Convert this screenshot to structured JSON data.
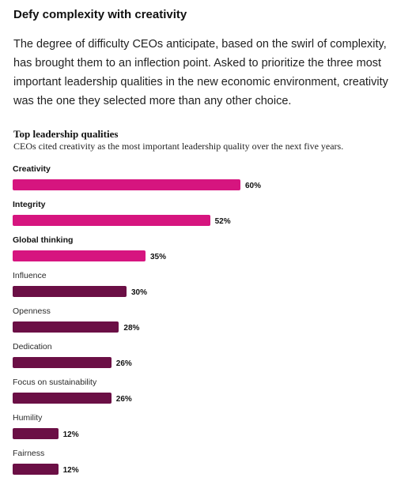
{
  "heading": "Defy complexity with creativity",
  "intro": "The degree of difficulty CEOs anticipate, based on the swirl of complexity, has brought them to an inflection point. Asked to prioritize the three most important leadership qualities in the new economic environment, creativity was the one they selected more than any other choice.",
  "colors": {
    "highlight": "#d6157f",
    "standard": "#6b0f45"
  },
  "chart_data": {
    "type": "bar",
    "orientation": "horizontal",
    "title": "Top leadership qualities",
    "subtitle": "CEOs cited creativity as the most important leadership quality over the next five years.",
    "xlim": [
      0,
      100
    ],
    "categories": [
      "Creativity",
      "Integrity",
      "Global thinking",
      "Influence",
      "Openness",
      "Dedication",
      "Focus on sustainability",
      "Humility",
      "Fairness"
    ],
    "values": [
      60,
      52,
      35,
      30,
      28,
      26,
      26,
      12,
      12
    ],
    "value_labels": [
      "60%",
      "52%",
      "35%",
      "30%",
      "28%",
      "26%",
      "26%",
      "12%",
      "12%"
    ],
    "highlighted": [
      true,
      true,
      true,
      false,
      false,
      false,
      false,
      false,
      false
    ]
  }
}
